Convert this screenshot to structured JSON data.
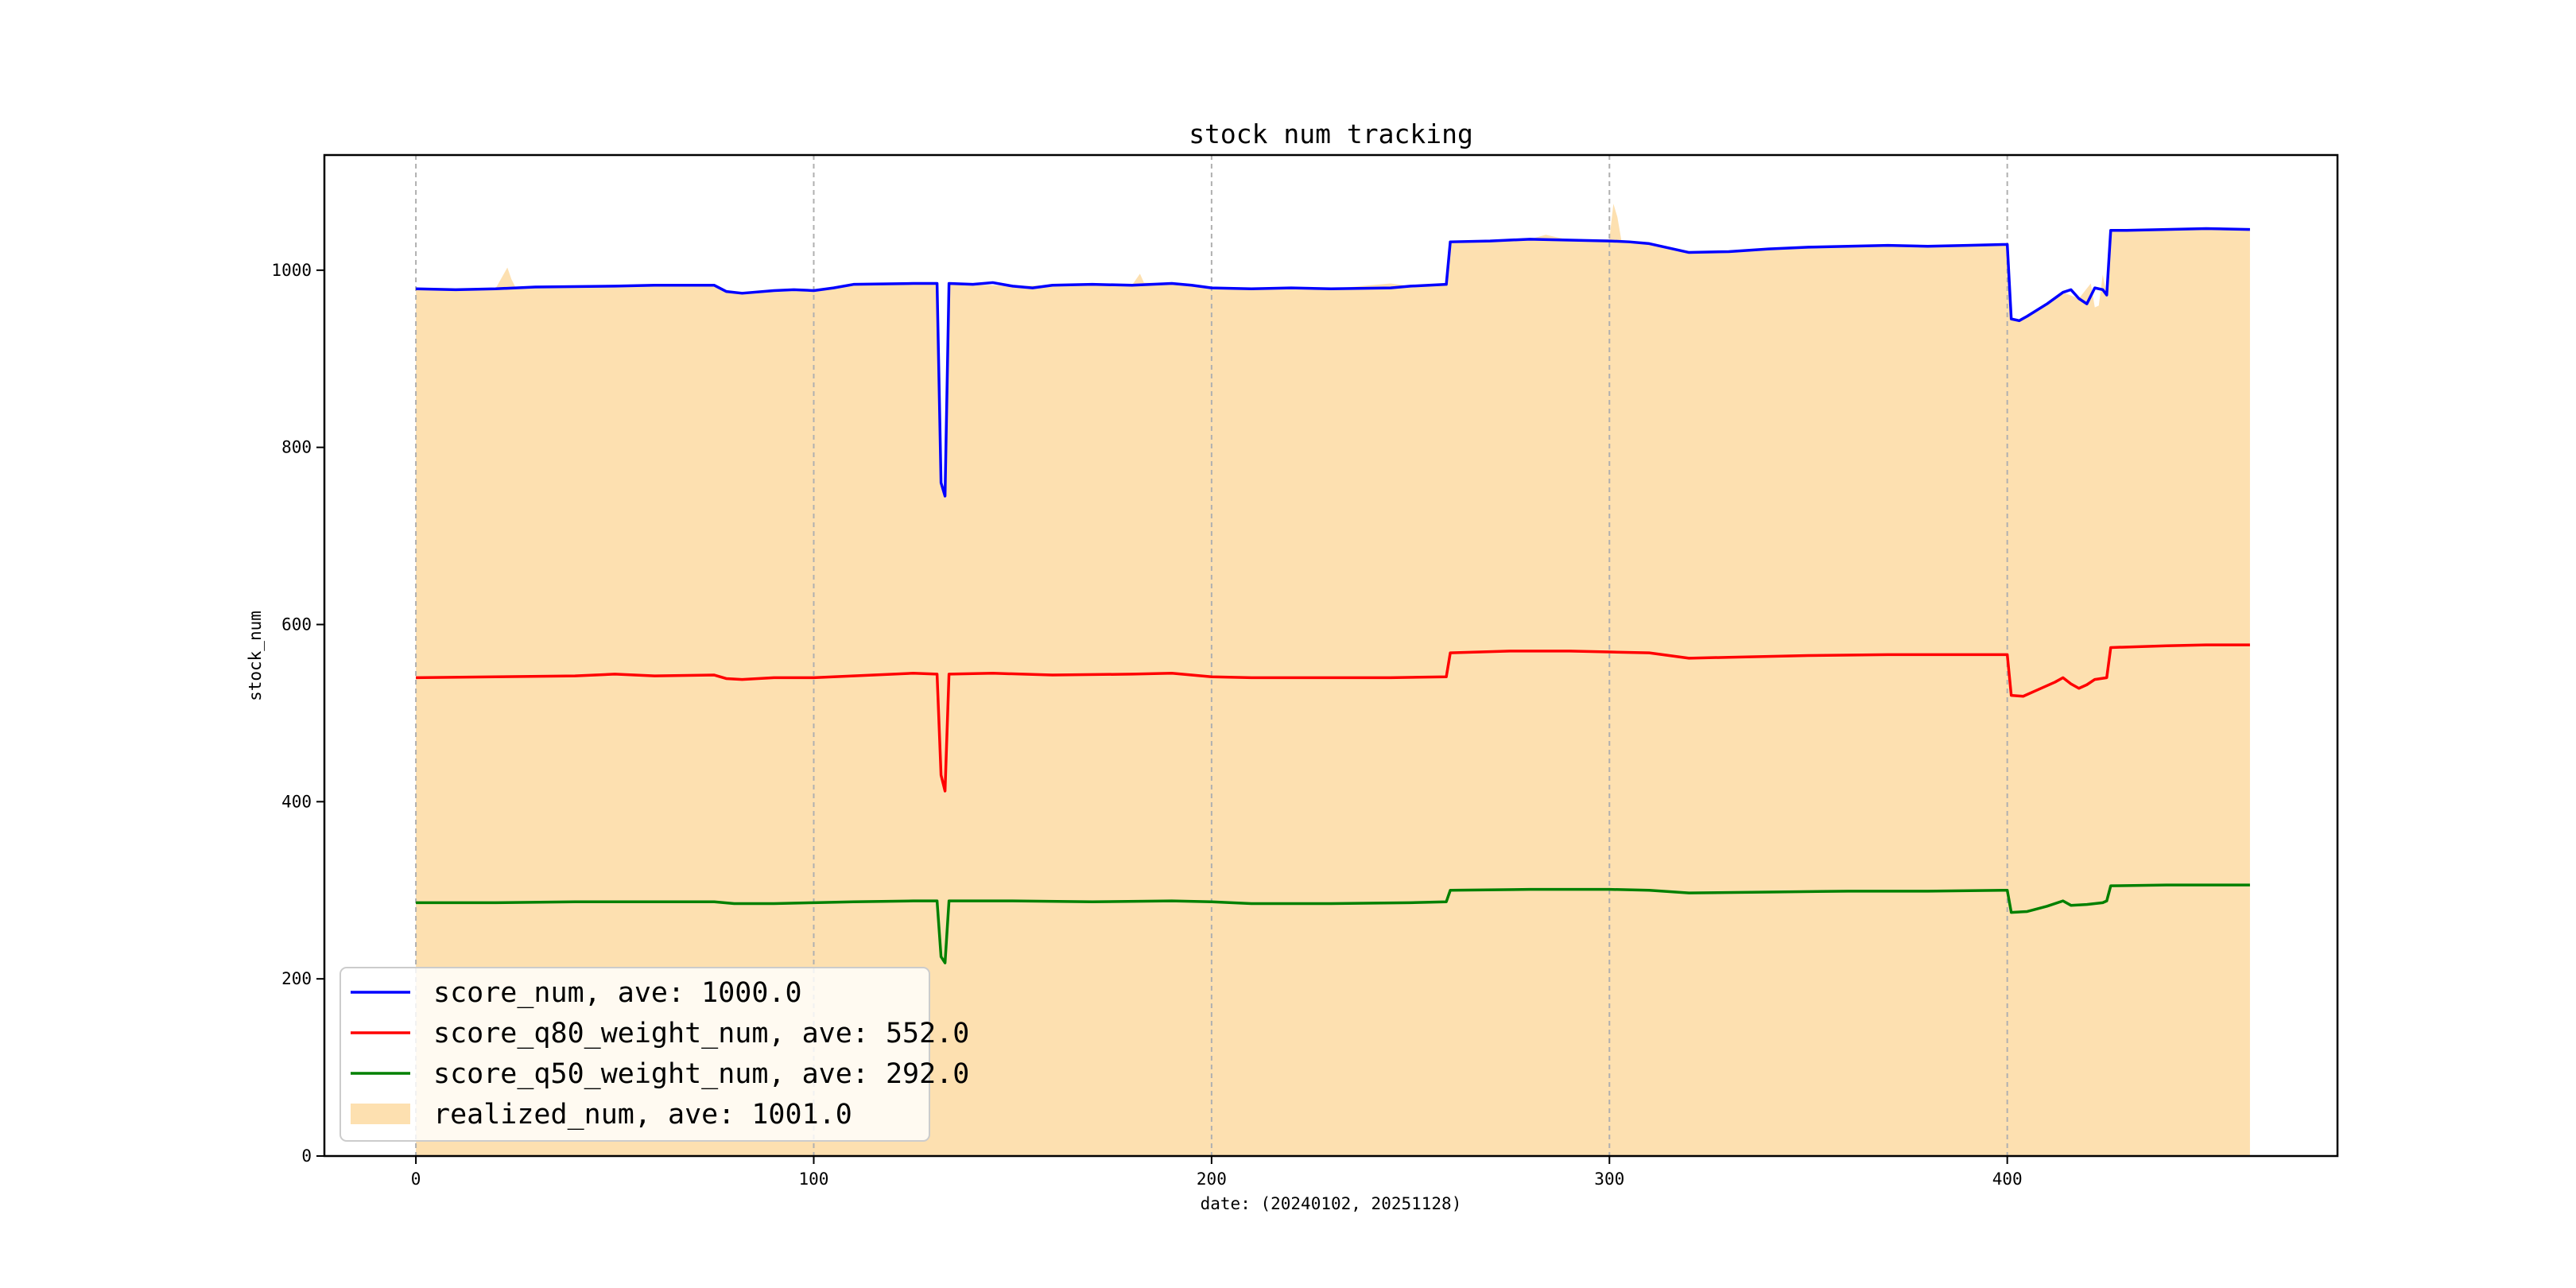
{
  "chart_data": {
    "type": "line",
    "title": "stock num tracking",
    "xlabel": "date: (20240102, 20251128)",
    "ylabel": "stock_num",
    "xlim": [
      -23,
      483
    ],
    "ylim": [
      0,
      1130
    ],
    "xticks": [
      0,
      100,
      200,
      300,
      400
    ],
    "yticks": [
      0,
      200,
      400,
      600,
      800,
      1000
    ],
    "grid": "x-dashed",
    "legend_position": "bottom-left",
    "series": [
      {
        "name": "score_num, ave: 1000.0",
        "kind": "line",
        "color": "#0000ff",
        "points": [
          [
            0,
            979
          ],
          [
            10,
            978
          ],
          [
            20,
            979
          ],
          [
            30,
            981
          ],
          [
            50,
            982
          ],
          [
            60,
            983
          ],
          [
            75,
            983
          ],
          [
            78,
            976
          ],
          [
            82,
            974
          ],
          [
            90,
            977
          ],
          [
            95,
            978
          ],
          [
            100,
            977
          ],
          [
            105,
            980
          ],
          [
            110,
            984
          ],
          [
            125,
            985
          ],
          [
            131,
            985
          ],
          [
            132,
            760
          ],
          [
            133,
            745
          ],
          [
            134,
            985
          ],
          [
            140,
            984
          ],
          [
            145,
            986
          ],
          [
            150,
            982
          ],
          [
            155,
            980
          ],
          [
            160,
            983
          ],
          [
            170,
            984
          ],
          [
            180,
            983
          ],
          [
            190,
            985
          ],
          [
            195,
            983
          ],
          [
            200,
            980
          ],
          [
            210,
            979
          ],
          [
            220,
            980
          ],
          [
            230,
            979
          ],
          [
            245,
            980
          ],
          [
            250,
            982
          ],
          [
            259,
            984
          ],
          [
            260,
            1032
          ],
          [
            270,
            1033
          ],
          [
            280,
            1035
          ],
          [
            290,
            1034
          ],
          [
            300,
            1033
          ],
          [
            305,
            1032
          ],
          [
            310,
            1030
          ],
          [
            320,
            1020
          ],
          [
            330,
            1021
          ],
          [
            340,
            1024
          ],
          [
            350,
            1026
          ],
          [
            360,
            1027
          ],
          [
            370,
            1028
          ],
          [
            380,
            1027
          ],
          [
            390,
            1028
          ],
          [
            399,
            1029
          ],
          [
            400,
            1029
          ],
          [
            401,
            945
          ],
          [
            403,
            943
          ],
          [
            405,
            948
          ],
          [
            410,
            962
          ],
          [
            414,
            975
          ],
          [
            416,
            978
          ],
          [
            418,
            968
          ],
          [
            420,
            962
          ],
          [
            422,
            980
          ],
          [
            424,
            978
          ],
          [
            425,
            972
          ],
          [
            426,
            1045
          ],
          [
            430,
            1045
          ],
          [
            440,
            1046
          ],
          [
            450,
            1047
          ],
          [
            461,
            1046
          ]
        ]
      },
      {
        "name": "score_q80_weight_num, ave: 552.0",
        "kind": "line",
        "color": "#ff0000",
        "points": [
          [
            0,
            540
          ],
          [
            20,
            541
          ],
          [
            40,
            542
          ],
          [
            50,
            544
          ],
          [
            60,
            542
          ],
          [
            75,
            543
          ],
          [
            78,
            539
          ],
          [
            82,
            538
          ],
          [
            90,
            540
          ],
          [
            100,
            540
          ],
          [
            110,
            542
          ],
          [
            125,
            545
          ],
          [
            131,
            544
          ],
          [
            132,
            430
          ],
          [
            133,
            412
          ],
          [
            134,
            544
          ],
          [
            145,
            545
          ],
          [
            160,
            543
          ],
          [
            180,
            544
          ],
          [
            190,
            545
          ],
          [
            200,
            541
          ],
          [
            210,
            540
          ],
          [
            230,
            540
          ],
          [
            245,
            540
          ],
          [
            259,
            541
          ],
          [
            260,
            568
          ],
          [
            275,
            570
          ],
          [
            290,
            570
          ],
          [
            300,
            569
          ],
          [
            310,
            568
          ],
          [
            320,
            562
          ],
          [
            330,
            563
          ],
          [
            350,
            565
          ],
          [
            370,
            566
          ],
          [
            390,
            566
          ],
          [
            399,
            566
          ],
          [
            400,
            566
          ],
          [
            401,
            520
          ],
          [
            404,
            519
          ],
          [
            407,
            525
          ],
          [
            412,
            535
          ],
          [
            414,
            540
          ],
          [
            416,
            533
          ],
          [
            418,
            528
          ],
          [
            420,
            532
          ],
          [
            422,
            538
          ],
          [
            425,
            540
          ],
          [
            426,
            574
          ],
          [
            440,
            576
          ],
          [
            450,
            577
          ],
          [
            461,
            577
          ]
        ]
      },
      {
        "name": "score_q50_weight_num, ave: 292.0",
        "kind": "line",
        "color": "#008000",
        "points": [
          [
            0,
            286
          ],
          [
            20,
            286
          ],
          [
            40,
            287
          ],
          [
            60,
            287
          ],
          [
            75,
            287
          ],
          [
            80,
            285
          ],
          [
            90,
            285
          ],
          [
            100,
            286
          ],
          [
            110,
            287
          ],
          [
            125,
            288
          ],
          [
            131,
            288
          ],
          [
            132,
            225
          ],
          [
            133,
            218
          ],
          [
            134,
            288
          ],
          [
            150,
            288
          ],
          [
            170,
            287
          ],
          [
            190,
            288
          ],
          [
            200,
            287
          ],
          [
            210,
            285
          ],
          [
            230,
            285
          ],
          [
            250,
            286
          ],
          [
            259,
            287
          ],
          [
            260,
            300
          ],
          [
            280,
            301
          ],
          [
            300,
            301
          ],
          [
            310,
            300
          ],
          [
            320,
            297
          ],
          [
            340,
            298
          ],
          [
            360,
            299
          ],
          [
            380,
            299
          ],
          [
            399,
            300
          ],
          [
            400,
            300
          ],
          [
            401,
            275
          ],
          [
            405,
            276
          ],
          [
            410,
            282
          ],
          [
            414,
            288
          ],
          [
            416,
            283
          ],
          [
            420,
            284
          ],
          [
            424,
            286
          ],
          [
            425,
            288
          ],
          [
            426,
            305
          ],
          [
            440,
            306
          ],
          [
            461,
            306
          ]
        ]
      },
      {
        "name": "realized_num, ave: 1001.0",
        "kind": "area",
        "color": "#fde0b0",
        "points": [
          [
            0,
            979
          ],
          [
            10,
            978
          ],
          [
            20,
            979
          ],
          [
            23,
            1003
          ],
          [
            24,
            990
          ],
          [
            25,
            981
          ],
          [
            50,
            982
          ],
          [
            75,
            983
          ],
          [
            78,
            976
          ],
          [
            82,
            974
          ],
          [
            100,
            977
          ],
          [
            110,
            984
          ],
          [
            131,
            985
          ],
          [
            132,
            765
          ],
          [
            133,
            750
          ],
          [
            134,
            985
          ],
          [
            150,
            982
          ],
          [
            170,
            984
          ],
          [
            180,
            983
          ],
          [
            182,
            996
          ],
          [
            183,
            986
          ],
          [
            190,
            985
          ],
          [
            200,
            980
          ],
          [
            230,
            979
          ],
          [
            245,
            985
          ],
          [
            250,
            982
          ],
          [
            259,
            984
          ],
          [
            260,
            1032
          ],
          [
            280,
            1035
          ],
          [
            284,
            1040
          ],
          [
            290,
            1034
          ],
          [
            300,
            1035
          ],
          [
            301,
            1075
          ],
          [
            302,
            1060
          ],
          [
            303,
            1034
          ],
          [
            310,
            1030
          ],
          [
            320,
            1020
          ],
          [
            340,
            1024
          ],
          [
            360,
            1027
          ],
          [
            380,
            1027
          ],
          [
            399,
            1029
          ],
          [
            400,
            1029
          ],
          [
            401,
            945
          ],
          [
            403,
            943
          ],
          [
            410,
            962
          ],
          [
            414,
            975
          ],
          [
            418,
            968
          ],
          [
            421,
            985
          ],
          [
            422,
            958
          ],
          [
            423,
            960
          ],
          [
            424,
            995
          ],
          [
            425,
            972
          ],
          [
            426,
            1045
          ],
          [
            440,
            1046
          ],
          [
            450,
            1047
          ],
          [
            461,
            1046
          ],
          [
            461,
            0
          ]
        ]
      }
    ]
  }
}
